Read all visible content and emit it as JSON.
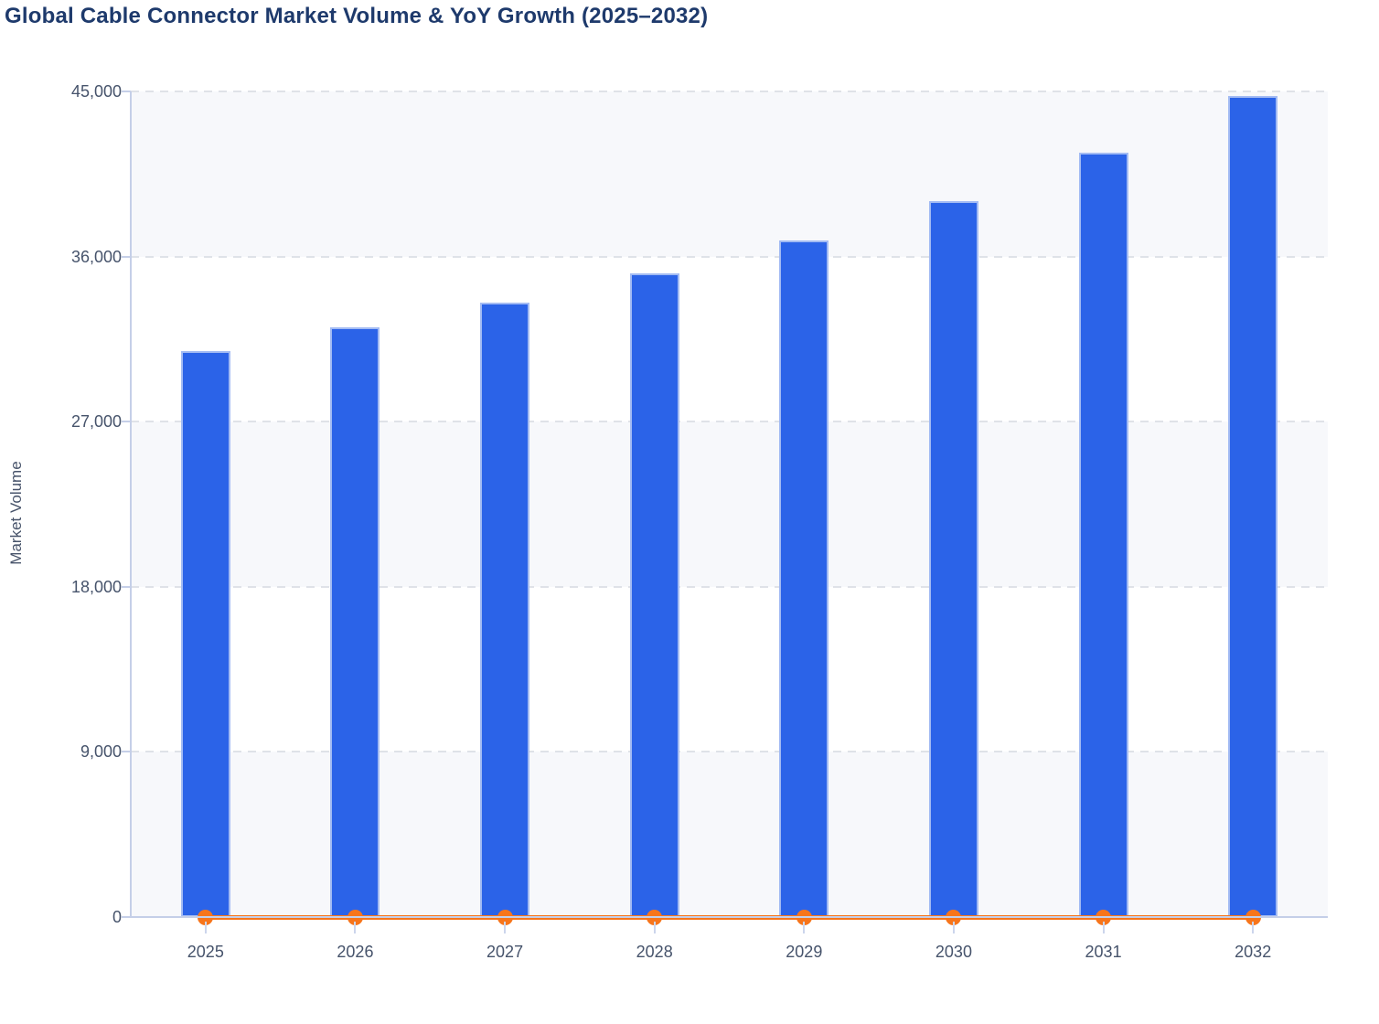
{
  "title": "Global Cable Connector Market Volume & YoY Growth (2025–2032)",
  "colors": {
    "title_text": "#1e3a6c",
    "tick_text": "#46536b",
    "axis_line": "#c5cfe8",
    "gridline": "#dfe2e8",
    "band_fill": "#f7f8fb",
    "bar_fill": "#2b63e8",
    "bar_border": "#b9caf4",
    "line_orange": "#f7751b"
  },
  "chart_data": {
    "type": "bar",
    "title": "Global Cable Connector Market Volume & YoY Growth (2025–2032)",
    "categories": [
      "2025",
      "2026",
      "2027",
      "2028",
      "2029",
      "2030",
      "2031",
      "2032"
    ],
    "series": [
      {
        "name": "Market Volume",
        "type": "bar",
        "color": "#2b63e8",
        "values": [
          30860,
          32120,
          33500,
          35100,
          36890,
          39040,
          41640,
          44750
        ]
      },
      {
        "name": "YoY Growth",
        "type": "line",
        "color": "#f7751b",
        "values": [
          0,
          0,
          0,
          0,
          0,
          0,
          0,
          0
        ],
        "note": "YoY growth percentages are not labeled; the orange line with circular markers renders flat along the zero baseline of the volume axis."
      }
    ],
    "xlabel": "",
    "ylabel": "Market Volume",
    "ylim": [
      0,
      45000
    ],
    "yticks": [
      0,
      9000,
      18000,
      27000,
      36000,
      45000
    ],
    "ytick_labels": [
      "0",
      "9,000",
      "18,000",
      "27,000",
      "36,000",
      "45,000"
    ],
    "grid": "horizontal dashed gridlines at each y tick",
    "plot_bands": "alternating horizontal bands, light #f7f8fb / white, topmost band light",
    "legend": "none"
  }
}
